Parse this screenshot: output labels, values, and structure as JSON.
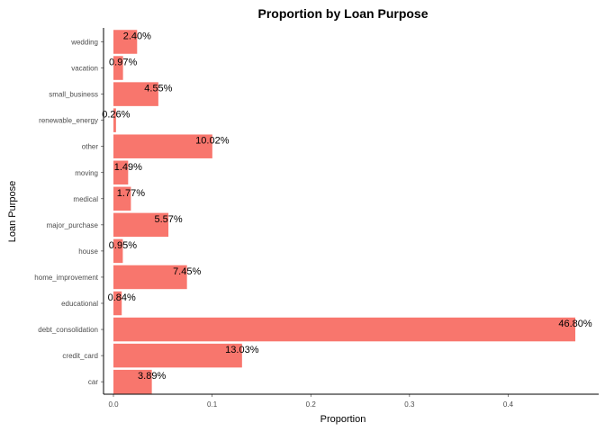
{
  "chart_data": {
    "type": "bar",
    "orientation": "horizontal",
    "title": "Proportion by Loan Purpose",
    "xlabel": "Proportion",
    "ylabel": "Loan Purpose",
    "xlim": [
      0,
      0.47
    ],
    "x_ticks": [
      {
        "value": 0.0,
        "label": "0.0"
      },
      {
        "value": 0.1,
        "label": "0.1"
      },
      {
        "value": 0.2,
        "label": "0.2"
      },
      {
        "value": 0.3,
        "label": "0.3"
      },
      {
        "value": 0.4,
        "label": "0.4"
      }
    ],
    "grid": false,
    "bar_color": "#f8766d",
    "categories": [
      "wedding",
      "vacation",
      "small_business",
      "renewable_energy",
      "other",
      "moving",
      "medical",
      "major_purchase",
      "house",
      "home_improvement",
      "educational",
      "debt_consolidation",
      "credit_card",
      "car"
    ],
    "values": [
      0.024,
      0.0097,
      0.0455,
      0.0026,
      0.1002,
      0.0149,
      0.0177,
      0.0557,
      0.0095,
      0.0745,
      0.0084,
      0.468,
      0.1303,
      0.0389
    ],
    "data_labels": [
      "2.40%",
      "0.97%",
      "4.55%",
      "0.26%",
      "10.02%",
      "1.49%",
      "1.77%",
      "5.57%",
      "0.95%",
      "7.45%",
      "0.84%",
      "46.80%",
      "13.03%",
      "3.89%"
    ]
  }
}
